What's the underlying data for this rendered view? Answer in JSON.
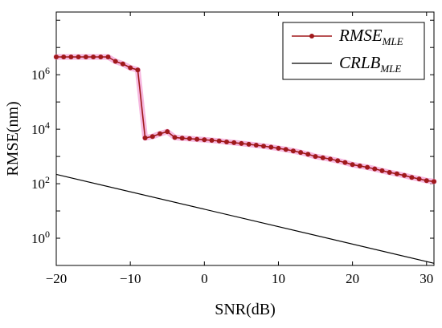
{
  "chart_data": {
    "type": "line",
    "title": "",
    "xlabel": "SNR(dB)",
    "ylabel": "RMSE(nm)",
    "xlim": [
      -20,
      31
    ],
    "ylim": [
      0.1,
      200000000
    ],
    "y_scale": "log",
    "x_ticks": [
      -20,
      -10,
      0,
      10,
      20,
      30
    ],
    "x_tick_labels": [
      "−20",
      "−10",
      "0",
      "10",
      "20",
      "30"
    ],
    "y_ticks": [
      1,
      100,
      10000,
      1000000
    ],
    "y_tick_labels": [
      {
        "base": "10",
        "exp": "0"
      },
      {
        "base": "10",
        "exp": "2"
      },
      {
        "base": "10",
        "exp": "4"
      },
      {
        "base": "10",
        "exp": "6"
      }
    ],
    "grid": false,
    "legend_position": "top-right",
    "series": [
      {
        "name": "RMSE",
        "name_sub": "MLE",
        "color": "#a0191b",
        "marker": "dot",
        "x": [
          -20,
          -19,
          -18,
          -17,
          -16,
          -15,
          -14,
          -13,
          -12,
          -11,
          -10,
          -9,
          -8,
          -7,
          -6,
          -5,
          -4,
          -3,
          -2,
          -1,
          0,
          1,
          2,
          3,
          4,
          5,
          6,
          7,
          8,
          9,
          10,
          11,
          12,
          13,
          14,
          15,
          16,
          17,
          18,
          19,
          20,
          21,
          22,
          23,
          24,
          25,
          26,
          27,
          28,
          29,
          30,
          31
        ],
        "y": [
          4500000,
          4500000,
          4500000,
          4500000,
          4500000,
          4500000,
          4500000,
          4500000,
          3100000,
          2500000,
          1800000,
          1500000,
          4800,
          5400,
          6800,
          8200,
          5000,
          4700,
          4500,
          4300,
          4100,
          3900,
          3700,
          3400,
          3200,
          3000,
          2800,
          2600,
          2400,
          2200,
          2000,
          1800,
          1600,
          1400,
          1200,
          1000,
          900,
          800,
          700,
          600,
          500,
          450,
          400,
          350,
          300,
          260,
          230,
          200,
          170,
          150,
          130,
          120
        ]
      },
      {
        "name": "CRLB",
        "name_sub": "MLE",
        "color": "#000000",
        "marker": "none",
        "x": [
          -20,
          31
        ],
        "y": [
          220,
          0.12
        ]
      }
    ]
  }
}
